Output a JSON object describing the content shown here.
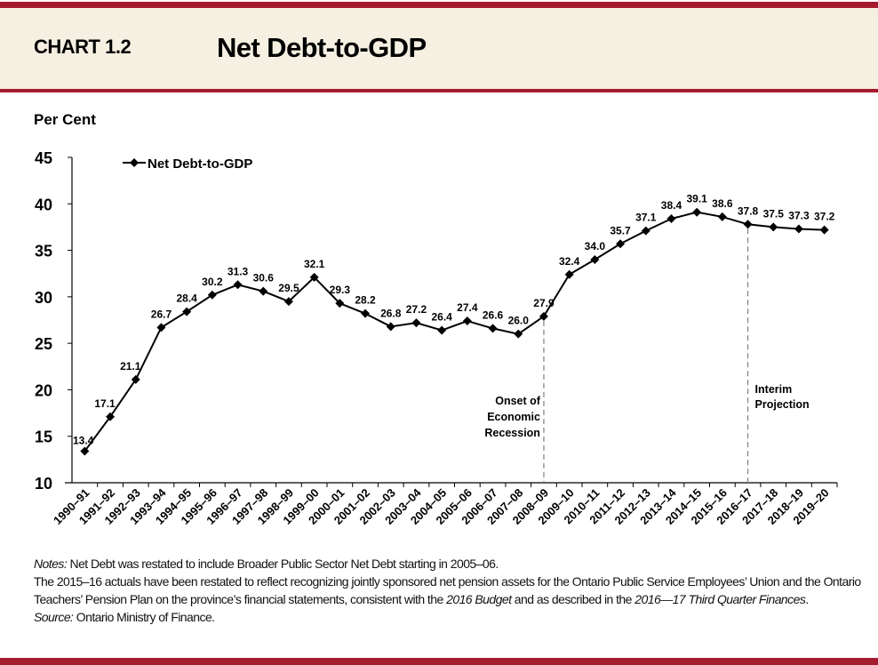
{
  "header": {
    "chart_number": "CHART 1.2",
    "title": "Net Debt-to-GDP"
  },
  "chart_data": {
    "type": "line",
    "title": "Net Debt-to-GDP",
    "ylabel": "Per Cent",
    "xlabel": "",
    "ylim": [
      10,
      45
    ],
    "yticks": [
      10,
      15,
      20,
      25,
      30,
      35,
      40,
      45
    ],
    "grid": false,
    "legend": "top-left",
    "categories": [
      "1990–91",
      "1991–92",
      "1992–93",
      "1993–94",
      "1994–95",
      "1995–96",
      "1996–97",
      "1997–98",
      "1998–99",
      "1999–00",
      "2000–01",
      "2001–02",
      "2002–03",
      "2003–04",
      "2004–05",
      "2005–06",
      "2006–07",
      "2007–08",
      "2008–09",
      "2009–10",
      "2010–11",
      "2011–12",
      "2012–13",
      "2013–14",
      "2014–15",
      "2015–16",
      "2016–17",
      "2017–18",
      "2018–19",
      "2019–20"
    ],
    "series": [
      {
        "name": "Net Debt-to-GDP",
        "color": "#000000",
        "marker": "diamond",
        "values": [
          13.4,
          17.1,
          21.1,
          26.7,
          28.4,
          30.2,
          31.3,
          30.6,
          29.5,
          32.1,
          29.3,
          28.2,
          26.8,
          27.2,
          26.4,
          27.4,
          26.6,
          26.0,
          27.9,
          32.4,
          34.0,
          35.7,
          37.1,
          38.4,
          39.1,
          38.6,
          37.8,
          37.5,
          37.3,
          37.2
        ],
        "labels": [
          "13.4",
          "17.1",
          "21.1",
          "26.7",
          "28.4",
          "30.2",
          "31.3",
          "30.6",
          "29.5",
          "32.1",
          "29.3",
          "28.2",
          "26.8",
          "27.2",
          "26.4",
          "27.4",
          "26.6",
          "26.0",
          "27.9",
          "32.4",
          "34.0",
          "35.7",
          "37.1",
          "38.4",
          "39.1",
          "38.6",
          "37.8",
          "37.5",
          "37.3",
          "37.2"
        ]
      }
    ],
    "annotations": [
      {
        "category": "2008–09",
        "text": [
          "Onset of",
          "Economic",
          "Recession"
        ],
        "style": "dashed-vertical-line"
      },
      {
        "category": "2016–17",
        "text": [
          "Interim",
          "Projection"
        ],
        "style": "dashed-vertical-line"
      }
    ]
  },
  "notes": {
    "notes_label": "Notes:",
    "line1": " Net Debt was restated to include Broader Public Sector Net Debt starting in 2005–06.",
    "line2a": "The 2015–16 actuals have been restated to reflect recognizing jointly sponsored net pension assets for the Ontario Public Service Employees’ Union and the Ontario Teachers’ Pension Plan on the province’s financial statements, consistent with the ",
    "line2_budget": "2016 Budget",
    "line2b": " and as described in the ",
    "line2_finances": "2016—17 Third Quarter Finances",
    "line2c": ".",
    "source_label": "Source:",
    "source": " Ontario Ministry of Finance."
  },
  "colors": {
    "accent": "#a51c30",
    "header_bg": "#f6f0e2",
    "line": "#000000",
    "reference_line": "#808080"
  }
}
